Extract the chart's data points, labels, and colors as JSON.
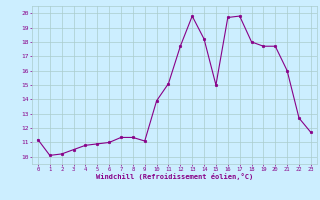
{
  "x": [
    0,
    1,
    2,
    3,
    4,
    5,
    6,
    7,
    8,
    9,
    10,
    11,
    12,
    13,
    14,
    15,
    16,
    17,
    18,
    19,
    20,
    21,
    22,
    23
  ],
  "y": [
    11.2,
    10.1,
    10.2,
    10.5,
    10.8,
    10.9,
    11.0,
    11.35,
    11.35,
    11.1,
    13.9,
    15.1,
    17.7,
    19.8,
    18.2,
    15.0,
    19.7,
    19.8,
    18.0,
    17.7,
    17.7,
    16.0,
    12.7,
    11.7
  ],
  "line_color": "#880088",
  "marker_color": "#880088",
  "bg_color": "#cceeff",
  "grid_color": "#aacccc",
  "xlabel": "Windchill (Refroidissement éolien,°C)",
  "xlabel_color": "#880088",
  "tick_color": "#880088",
  "ylim": [
    9.5,
    20.5
  ],
  "xlim": [
    -0.5,
    23.5
  ],
  "yticks": [
    10,
    11,
    12,
    13,
    14,
    15,
    16,
    17,
    18,
    19,
    20
  ],
  "xticks": [
    0,
    1,
    2,
    3,
    4,
    5,
    6,
    7,
    8,
    9,
    10,
    11,
    12,
    13,
    14,
    15,
    16,
    17,
    18,
    19,
    20,
    21,
    22,
    23
  ]
}
